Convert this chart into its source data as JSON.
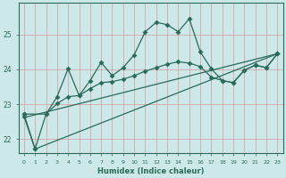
{
  "bg_color": "#cce8e8",
  "grid_color": "#d49999",
  "line_color": "#2a6b5a",
  "xlabel": "Humidex (Indice chaleur)",
  "xlim": [
    -0.5,
    23.5
  ],
  "ylim": [
    21.6,
    25.9
  ],
  "yticks": [
    22,
    23,
    24,
    25
  ],
  "xticks": [
    0,
    1,
    2,
    3,
    4,
    5,
    6,
    7,
    8,
    9,
    10,
    11,
    12,
    13,
    14,
    15,
    16,
    17,
    18,
    19,
    20,
    21,
    22,
    23
  ],
  "line1_x": [
    0,
    1,
    2,
    3,
    4,
    5,
    6,
    7,
    8,
    9,
    10,
    11,
    12,
    13,
    14,
    15,
    16,
    17,
    18,
    19,
    20,
    21,
    22,
    23
  ],
  "line1_y": [
    22.72,
    21.72,
    22.72,
    23.22,
    24.02,
    23.25,
    23.68,
    24.2,
    23.82,
    24.05,
    24.42,
    25.08,
    25.35,
    25.28,
    25.08,
    25.45,
    24.5,
    24.02,
    23.68,
    23.62,
    23.98,
    24.12,
    24.05,
    24.45
  ],
  "line2_x": [
    0,
    2,
    3,
    4,
    5,
    6,
    7,
    8,
    9,
    10,
    11,
    12,
    13,
    14,
    15,
    16,
    17,
    18,
    19,
    20,
    21,
    22,
    23
  ],
  "line2_y": [
    22.72,
    22.72,
    23.02,
    23.22,
    23.25,
    23.45,
    23.62,
    23.65,
    23.72,
    23.82,
    23.95,
    24.05,
    24.15,
    24.22,
    24.18,
    24.08,
    23.78,
    23.68,
    23.62,
    23.98,
    24.12,
    24.05,
    24.45
  ],
  "line3_x": [
    0,
    1,
    23
  ],
  "line3_y": [
    22.65,
    21.72,
    24.45
  ],
  "line4_x": [
    0,
    23
  ],
  "line4_y": [
    22.62,
    24.45
  ]
}
